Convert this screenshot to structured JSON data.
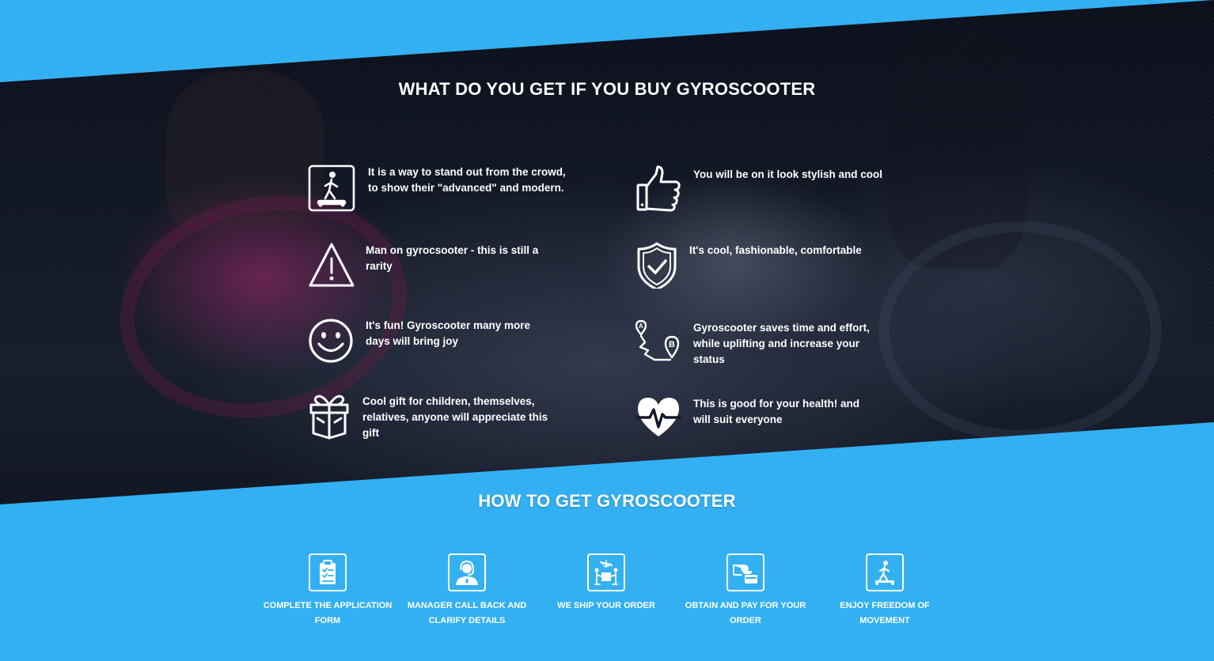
{
  "colors": {
    "background": "#33b0f1",
    "band": "#111726",
    "text": "#ffffff"
  },
  "benefits_section": {
    "title": "WHAT DO YOU GET IF YOU BUY GYROSCOOTER",
    "items": [
      {
        "icon": "person-on-hoverboard-icon",
        "text": "It is a way to stand out from the crowd, to show their \"advanced\" and modern."
      },
      {
        "icon": "thumbs-up-icon",
        "text": "You will be on it look stylish and cool"
      },
      {
        "icon": "warning-triangle-icon",
        "text": "Man on gyrocsooter - this is still a rarity"
      },
      {
        "icon": "shield-check-icon",
        "text": "It's cool, fashionable, comfortable"
      },
      {
        "icon": "smiley-face-icon",
        "text": "It's fun! Gyroscooter many more days will bring joy"
      },
      {
        "icon": "route-a-to-b-icon",
        "text": "Gyroscooter saves time and effort, while uplifting and increase your status"
      },
      {
        "icon": "gift-box-icon",
        "text": "Cool gift for children, themselves, relatives, anyone will appreciate this gift"
      },
      {
        "icon": "heart-pulse-icon",
        "text": "This is good for your health! and will suit everyone"
      }
    ]
  },
  "steps_section": {
    "title": "HOW TO GET GYROSCOOTER",
    "steps": [
      {
        "icon": "clipboard-form-icon",
        "label": "COMPLETE THE APPLICATION FORM"
      },
      {
        "icon": "call-center-manager-icon",
        "label": "MANAGER CALL BACK AND CLARIFY DETAILS"
      },
      {
        "icon": "delivery-shipping-icon",
        "label": "WE SHIP YOUR ORDER"
      },
      {
        "icon": "card-payment-icon",
        "label": "OBTAIN AND PAY FOR YOUR ORDER"
      },
      {
        "icon": "person-on-hoverboard-icon",
        "label": "ENJOY FREEDOM OF MOVEMENT"
      }
    ]
  }
}
